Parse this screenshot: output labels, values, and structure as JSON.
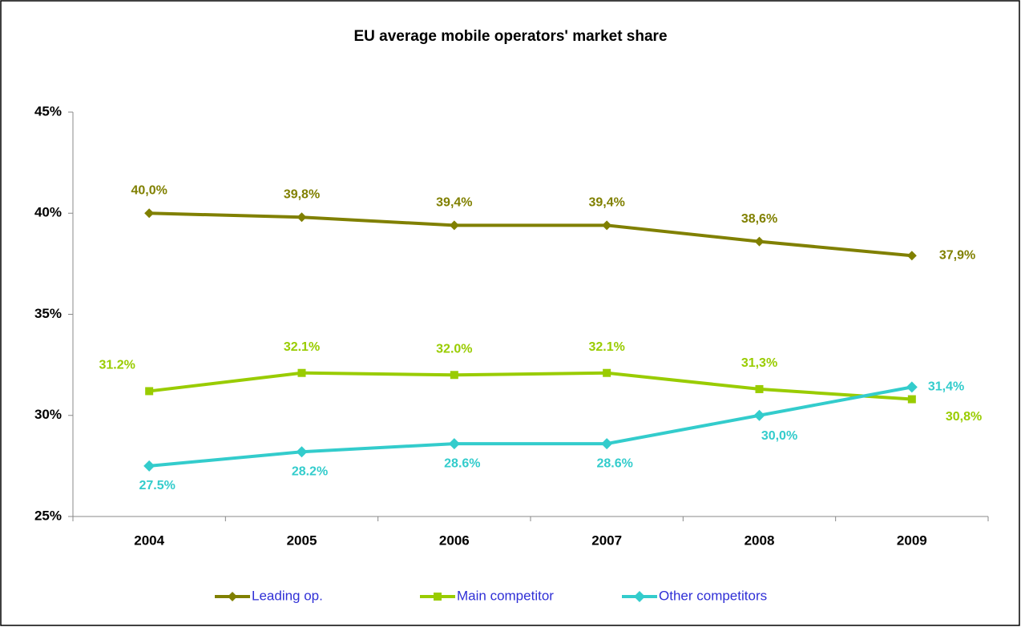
{
  "chart_data": {
    "type": "line",
    "title": "EU average mobile operators' market share",
    "categories": [
      "2004",
      "2005",
      "2006",
      "2007",
      "2008",
      "2009"
    ],
    "series": [
      {
        "name": "Leading op.",
        "color": "#808000",
        "marker": "diamond",
        "values": [
          40.0,
          39.8,
          39.4,
          39.4,
          38.6,
          37.9
        ],
        "value_labels": [
          "40,0%",
          "39,8%",
          "39,4%",
          "39,4%",
          "38,6%",
          "37,9%"
        ]
      },
      {
        "name": "Main competitor",
        "color": "#99cc00",
        "marker": "square",
        "values": [
          31.2,
          32.1,
          32.0,
          32.1,
          31.3,
          30.8
        ],
        "value_labels": [
          "31.2%",
          "32.1%",
          "32.0%",
          "32.1%",
          "31,3%",
          "30,8%"
        ]
      },
      {
        "name": "Other competitors",
        "color": "#33cccc",
        "marker": "diamond",
        "values": [
          27.5,
          28.2,
          28.6,
          28.6,
          30.0,
          31.4
        ],
        "value_labels": [
          "27.5%",
          "28.2%",
          "28.6%",
          "28.6%",
          "30,0%",
          "31,4%"
        ]
      }
    ],
    "ylim": [
      25,
      45
    ],
    "yticks": [
      {
        "value": 25,
        "label": "25%"
      },
      {
        "value": 30,
        "label": "30%"
      },
      {
        "value": 35,
        "label": "35%"
      },
      {
        "value": 40,
        "label": "40%"
      },
      {
        "value": 45,
        "label": "45%"
      }
    ],
    "legend": "bottom"
  }
}
